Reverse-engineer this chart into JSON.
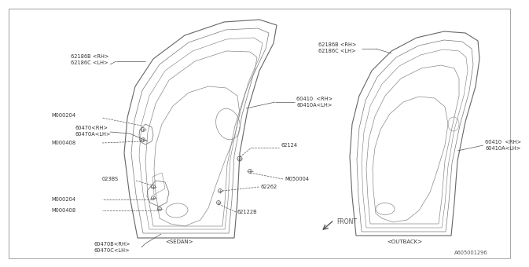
{
  "background_color": "#ffffff",
  "labels": {
    "sedan_label": "<SEDAN>",
    "outback_label": "<OUTBACK>",
    "front_label": "FRONT",
    "diagram_id": "A605001296"
  },
  "parts": {
    "62186B_RH": "62186B <RH>",
    "62186C_LH": "62186C <LH>",
    "60410_RH": "60410  <RH>",
    "60410A_LH": "60410A<LH>",
    "60470_RH": "60470<RH>",
    "60470A_LH": "60470A<LH>",
    "M000204": "M000204",
    "M000408": "M000408",
    "023BS": "023BS",
    "60470B_RH": "60470B<RH>",
    "60470C_LH": "60470C<LH>",
    "62124": "62124",
    "M050004": "M050004",
    "62262": "62262",
    "62122B": "62122B",
    "60410_RH2": "60410  <RH>",
    "60410A_LH2": "60410A<LH>",
    "62186B_RH2": "62186B <RH>",
    "62186C_LH2": "62186C <LH>"
  }
}
